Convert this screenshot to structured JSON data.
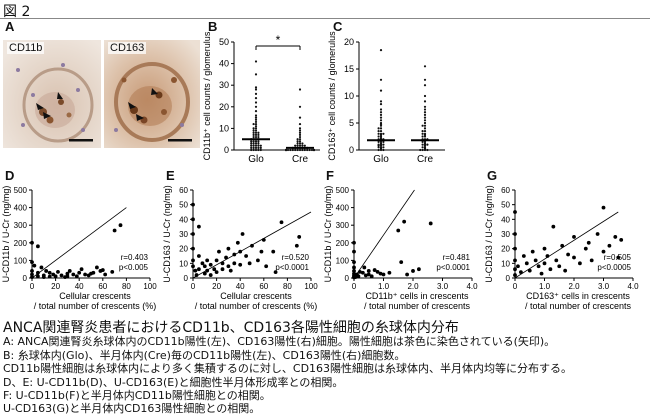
{
  "figure_title": "図 2",
  "panels": {
    "A": {
      "label": "A",
      "left_tag": "CD11b",
      "right_tag": "CD163"
    },
    "B": {
      "label": "B"
    },
    "C": {
      "label": "C"
    },
    "D": {
      "label": "D"
    },
    "E": {
      "label": "E"
    },
    "F": {
      "label": "F"
    },
    "G": {
      "label": "G"
    }
  },
  "caption": {
    "title": "ANCA関連腎炎患者におけるCD11b、CD163各陽性細胞の糸球体内分布",
    "lines": [
      "A: ANCA関連腎炎糸球体内のCD11b陽性(左)、CD163陽性(右)細胞。陽性細胞は茶色に染色されている(矢印)。",
      "B: 糸球体内(Glo)、半月体内(Cre)毎のCD11b陽性(左)、CD163陽性(右)細胞数。",
      "CD11b陽性細胞は糸球体内により多く集積するのに対し、CD163陽性細胞は糸球体内、半月体内均等に分布する。",
      "D、E: U-CD11b(D)、U-CD163(E)と細胞性半月体形成率との相関。",
      "F: U-CD11b(F)と半月体内CD11b陽性細胞との相関。",
      "U-CD163(G)と半月体内CD163陽性細胞との相関。"
    ]
  },
  "chart_data": [
    {
      "type": "scatter",
      "id": "B",
      "ylabel": "CD11b⁺ cell counts / glomerulus",
      "categories": [
        "Glo",
        "Cre"
      ],
      "yticks": [
        "0",
        "10",
        "20",
        "30",
        "40",
        "50"
      ],
      "ylim": [
        0,
        50
      ],
      "significance": "*",
      "means": [
        5,
        1
      ],
      "series": [
        {
          "category": "Glo",
          "values": [
            41,
            35,
            29,
            28,
            26,
            24,
            22,
            20,
            18,
            16,
            15,
            14,
            13,
            12,
            12,
            11,
            10,
            10,
            9,
            9,
            8,
            8,
            8,
            7,
            7,
            7,
            6,
            6,
            6,
            5,
            5,
            5,
            5,
            4,
            4,
            4,
            4,
            3,
            3,
            3,
            3,
            2,
            2,
            2,
            2,
            2,
            1,
            1,
            1,
            1,
            1,
            0,
            0,
            0,
            0,
            0
          ]
        },
        {
          "category": "Cre",
          "values": [
            28,
            20,
            15,
            12,
            10,
            9,
            8,
            7,
            6,
            5,
            5,
            4,
            4,
            3,
            3,
            3,
            2,
            2,
            2,
            2,
            2,
            1,
            1,
            1,
            1,
            1,
            1,
            1,
            0,
            0,
            0,
            0,
            0,
            0,
            0,
            0,
            0,
            0,
            0,
            0,
            0,
            0,
            0,
            0,
            0,
            0,
            0,
            0,
            0,
            0
          ]
        }
      ]
    },
    {
      "type": "scatter",
      "id": "C",
      "ylabel": "CD163⁺ cell counts / glomerulus",
      "categories": [
        "Glo",
        "Cre"
      ],
      "yticks": [
        "0",
        "5",
        "10",
        "15",
        "20"
      ],
      "ylim": [
        0,
        20
      ],
      "means": [
        1.8,
        1.8
      ],
      "series": [
        {
          "category": "Glo",
          "values": [
            18.5,
            13,
            11,
            9,
            8.5,
            7.5,
            7,
            6.5,
            6,
            5.5,
            5,
            4.8,
            4.5,
            4,
            4,
            3.5,
            3.5,
            3,
            3,
            3,
            2.8,
            2.5,
            2.5,
            2.2,
            2,
            2,
            2,
            1.8,
            1.5,
            1.5,
            1.5,
            1.2,
            1,
            1,
            1,
            0.8,
            0.8,
            0.5,
            0.5,
            0.5,
            0.3,
            0.2,
            0,
            0,
            0
          ]
        },
        {
          "category": "Cre",
          "values": [
            15.5,
            13,
            12,
            10,
            9,
            8,
            7.5,
            7,
            6.5,
            6,
            5.5,
            5,
            4.5,
            4.5,
            4,
            3.5,
            3.5,
            3,
            3,
            2.8,
            2.5,
            2.5,
            2,
            2,
            2,
            1.8,
            1.5,
            1.5,
            1.2,
            1,
            1,
            1,
            0.8,
            0.5,
            0.5,
            0.3,
            0.2,
            0,
            0,
            0,
            0
          ]
        }
      ]
    },
    {
      "type": "scatter",
      "id": "D",
      "ylabel": "U-CD11b / U-Cr (ng/mg)",
      "xlabel": "Cellular crescents / total number of crescents (%)",
      "xticks": [
        "0",
        "20",
        "40",
        "60",
        "80",
        "100"
      ],
      "xlim": [
        0,
        100
      ],
      "yticks": [
        "0",
        "100",
        "200",
        "300",
        "400",
        "500"
      ],
      "ylim": [
        0,
        500
      ],
      "stat_r": "r=0.403",
      "stat_p": "p<0.005",
      "fit": [
        [
          0,
          0
        ],
        [
          80,
          400
        ]
      ],
      "points": [
        [
          0,
          200
        ],
        [
          0,
          90
        ],
        [
          0,
          40
        ],
        [
          0,
          20
        ],
        [
          0,
          5
        ],
        [
          2,
          70
        ],
        [
          5,
          180
        ],
        [
          5,
          30
        ],
        [
          5,
          10
        ],
        [
          8,
          60
        ],
        [
          10,
          15
        ],
        [
          10,
          5
        ],
        [
          12,
          40
        ],
        [
          15,
          30
        ],
        [
          15,
          8
        ],
        [
          18,
          20
        ],
        [
          20,
          10
        ],
        [
          22,
          35
        ],
        [
          25,
          15
        ],
        [
          28,
          5
        ],
        [
          30,
          25
        ],
        [
          30,
          10
        ],
        [
          32,
          40
        ],
        [
          35,
          20
        ],
        [
          38,
          10
        ],
        [
          40,
          30
        ],
        [
          42,
          50
        ],
        [
          45,
          20
        ],
        [
          48,
          15
        ],
        [
          50,
          25
        ],
        [
          52,
          30
        ],
        [
          55,
          60
        ],
        [
          58,
          40
        ],
        [
          60,
          45
        ],
        [
          62,
          20
        ],
        [
          68,
          35
        ],
        [
          70,
          270
        ],
        [
          75,
          300
        ]
      ]
    },
    {
      "type": "scatter",
      "id": "E",
      "ylabel": "U-CD163 / U-Cr (ng/mg)",
      "xlabel": "Cellular crescents / total number of crescents (%)",
      "xticks": [
        "0",
        "20",
        "40",
        "60",
        "80",
        "100"
      ],
      "xlim": [
        0,
        100
      ],
      "yticks": [
        "0",
        "10",
        "20",
        "30",
        "40",
        "50",
        "60"
      ],
      "ylim": [
        0,
        60
      ],
      "stat_r": "r=0.520",
      "stat_p": "p<0.0001",
      "fit": [
        [
          0,
          0
        ],
        [
          100,
          45
        ]
      ],
      "points": [
        [
          0,
          50
        ],
        [
          0,
          40
        ],
        [
          0,
          30
        ],
        [
          0,
          20
        ],
        [
          0,
          12
        ],
        [
          0,
          8
        ],
        [
          2,
          5
        ],
        [
          3,
          2
        ],
        [
          5,
          35
        ],
        [
          5,
          15
        ],
        [
          5,
          6
        ],
        [
          8,
          10
        ],
        [
          10,
          3
        ],
        [
          10,
          8
        ],
        [
          12,
          12
        ],
        [
          12,
          5
        ],
        [
          15,
          9
        ],
        [
          15,
          2
        ],
        [
          18,
          6
        ],
        [
          20,
          12
        ],
        [
          20,
          4
        ],
        [
          22,
          18
        ],
        [
          25,
          10
        ],
        [
          25,
          6
        ],
        [
          28,
          14
        ],
        [
          30,
          8
        ],
        [
          30,
          20
        ],
        [
          32,
          5
        ],
        [
          35,
          16
        ],
        [
          35,
          10
        ],
        [
          38,
          24
        ],
        [
          40,
          18
        ],
        [
          40,
          9
        ],
        [
          42,
          30
        ],
        [
          45,
          15
        ],
        [
          48,
          10
        ],
        [
          50,
          22
        ],
        [
          55,
          12
        ],
        [
          58,
          18
        ],
        [
          60,
          26
        ],
        [
          62,
          8
        ],
        [
          68,
          18
        ],
        [
          70,
          4
        ],
        [
          75,
          38
        ],
        [
          88,
          22
        ],
        [
          90,
          28
        ]
      ]
    },
    {
      "type": "scatter",
      "id": "F",
      "ylabel": "U-CD11b / U-Cr (ng/mg)",
      "xlabel": "CD11b⁺ cells in crescents / total number of crescents",
      "xticks": [
        "0",
        "1.0",
        "2.0",
        "3.0",
        "4.0"
      ],
      "xlim": [
        0,
        4
      ],
      "yticks": [
        "0",
        "100",
        "200",
        "300",
        "400",
        "500"
      ],
      "ylim": [
        0,
        500
      ],
      "stat_r": "r=0.481",
      "stat_p": "p<0.0001",
      "fit": [
        [
          0,
          0
        ],
        [
          2.05,
          500
        ]
      ],
      "points": [
        [
          0,
          200
        ],
        [
          0,
          150
        ],
        [
          0,
          90
        ],
        [
          0,
          60
        ],
        [
          0,
          40
        ],
        [
          0,
          25
        ],
        [
          0,
          15
        ],
        [
          0,
          8
        ],
        [
          0,
          3
        ],
        [
          0.05,
          5
        ],
        [
          0.1,
          20
        ],
        [
          0.15,
          10
        ],
        [
          0.2,
          35
        ],
        [
          0.3,
          30
        ],
        [
          0.35,
          60
        ],
        [
          0.4,
          15
        ],
        [
          0.5,
          40
        ],
        [
          0.5,
          20
        ],
        [
          0.6,
          10
        ],
        [
          0.7,
          45
        ],
        [
          0.8,
          35
        ],
        [
          0.9,
          25
        ],
        [
          1.0,
          20
        ],
        [
          1.2,
          30
        ],
        [
          1.5,
          270
        ],
        [
          1.6,
          90
        ],
        [
          1.7,
          320
        ],
        [
          1.8,
          20
        ],
        [
          2.0,
          40
        ],
        [
          2.2,
          50
        ],
        [
          2.6,
          310
        ]
      ]
    },
    {
      "type": "scatter",
      "id": "G",
      "ylabel": "U-CD163 / U-Cr (ng/mg)",
      "xlabel": "CD163⁺ cells in crescents / total number of crescents",
      "xticks": [
        "0",
        "1.0",
        "2.0",
        "3.0",
        "4.0"
      ],
      "xlim": [
        0,
        4
      ],
      "yticks": [
        "0",
        "10",
        "20",
        "30",
        "40",
        "50",
        "60"
      ],
      "ylim": [
        0,
        60
      ],
      "stat_r": "r=0.505",
      "stat_p": "p<0.0005",
      "fit": [
        [
          0,
          0
        ],
        [
          3.5,
          45
        ]
      ],
      "points": [
        [
          0,
          45
        ],
        [
          0,
          30
        ],
        [
          0,
          20
        ],
        [
          0,
          12
        ],
        [
          0,
          6
        ],
        [
          0,
          2
        ],
        [
          0.1,
          8
        ],
        [
          0.2,
          4
        ],
        [
          0.3,
          15
        ],
        [
          0.4,
          10
        ],
        [
          0.5,
          5
        ],
        [
          0.6,
          18
        ],
        [
          0.7,
          12
        ],
        [
          0.8,
          8
        ],
        [
          0.9,
          3
        ],
        [
          1.0,
          10
        ],
        [
          1.0,
          20
        ],
        [
          1.1,
          15
        ],
        [
          1.2,
          6
        ],
        [
          1.3,
          35
        ],
        [
          1.4,
          12
        ],
        [
          1.5,
          8
        ],
        [
          1.6,
          22
        ],
        [
          1.7,
          5
        ],
        [
          1.8,
          16
        ],
        [
          2.0,
          14
        ],
        [
          2.0,
          28
        ],
        [
          2.2,
          10
        ],
        [
          2.4,
          20
        ],
        [
          2.5,
          24
        ],
        [
          2.6,
          12
        ],
        [
          2.8,
          30
        ],
        [
          3.0,
          18
        ],
        [
          3.0,
          48
        ],
        [
          3.2,
          22
        ],
        [
          3.4,
          28
        ],
        [
          3.5,
          14
        ],
        [
          3.6,
          26
        ]
      ]
    }
  ]
}
